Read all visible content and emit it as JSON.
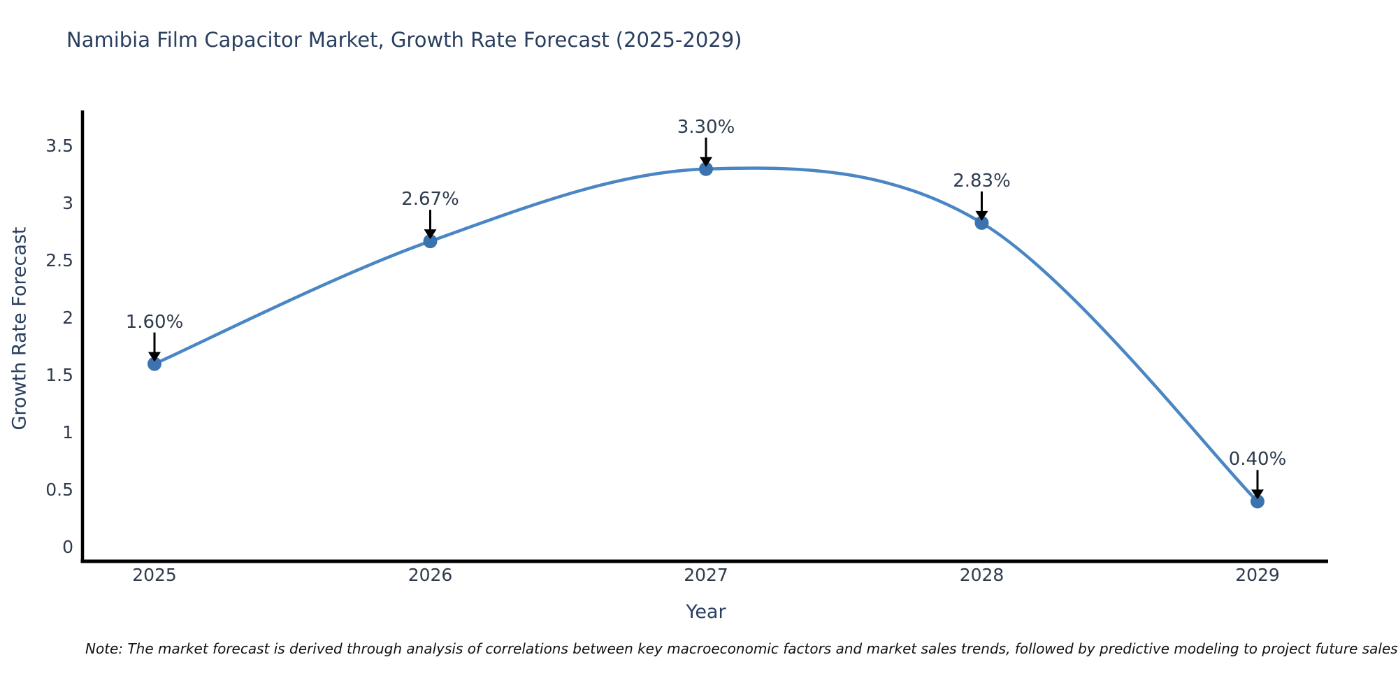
{
  "chart_data": {
    "type": "line",
    "title": "Namibia Film Capacitor Market, Growth Rate Forecast (2025-2029)",
    "xlabel": "Year",
    "ylabel": "Growth Rate Forecast",
    "categories": [
      "2025",
      "2026",
      "2027",
      "2028",
      "2029"
    ],
    "values": [
      1.6,
      2.67,
      3.3,
      2.83,
      0.4
    ],
    "point_labels": [
      "1.60%",
      "2.67%",
      "3.30%",
      "2.83%",
      "0.40%"
    ],
    "ytick_labels": [
      "0",
      "0.5",
      "1",
      "1.5",
      "2",
      "2.5",
      "3",
      "3.5"
    ],
    "ytick_values": [
      0,
      0.5,
      1,
      1.5,
      2,
      2.5,
      3,
      3.5
    ],
    "ylim": [
      0,
      3.7
    ],
    "grid": false,
    "legend_position": "none",
    "line_color": "#4a86c4",
    "marker_color": "#3a73ae",
    "axis_color": "#000000",
    "title_color": "#2a3f5f",
    "tick_color": "#2f3b4c",
    "annotation_arrow_color": "#000000",
    "annotation_style": "arrow-down-to-point"
  },
  "footnote": {
    "text": "Note: The market forecast is derived through analysis of correlations between key macroeconomic factors and market sales trends, followed by predictive modeling to project future sales"
  }
}
